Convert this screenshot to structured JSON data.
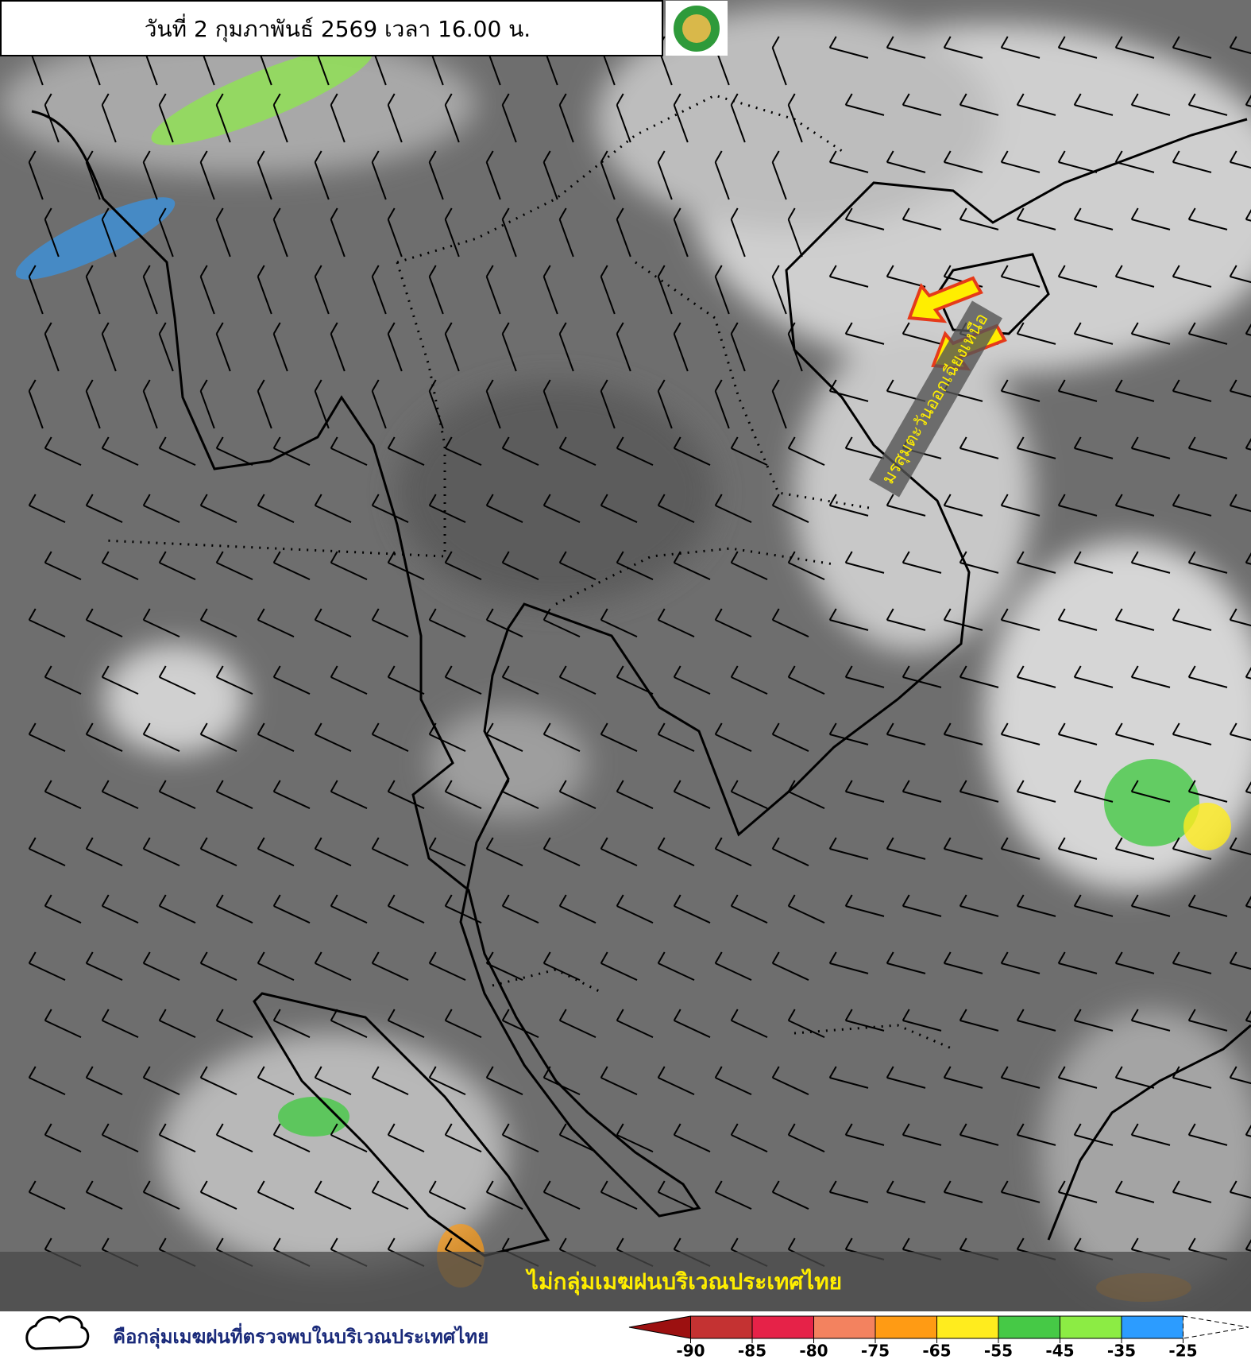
{
  "header": {
    "title": "วันที่ 2 กุมภาพันธ์ 2569 เวลา 16.00 น."
  },
  "annotation": "มรสุมตะวันออกเฉียงเหนือ",
  "banner": "ไม่กลุ่มเมฆฝนบริเวณประเทศไทย",
  "legend": {
    "text": "คือกลุ่มเมฆฝนที่ตรวจพบในบริเวณประเทศไทย",
    "scale_ticks": [
      -90,
      -85,
      -80,
      -75,
      -65,
      -55,
      -45,
      -35,
      -25
    ],
    "scale_colors": [
      "#9c1010",
      "#c43232",
      "#e62248",
      "#f3825f",
      "#ff9b14",
      "#ffec1e",
      "#46c946",
      "#8cec44",
      "#2c9cff",
      "#ffffff"
    ]
  }
}
